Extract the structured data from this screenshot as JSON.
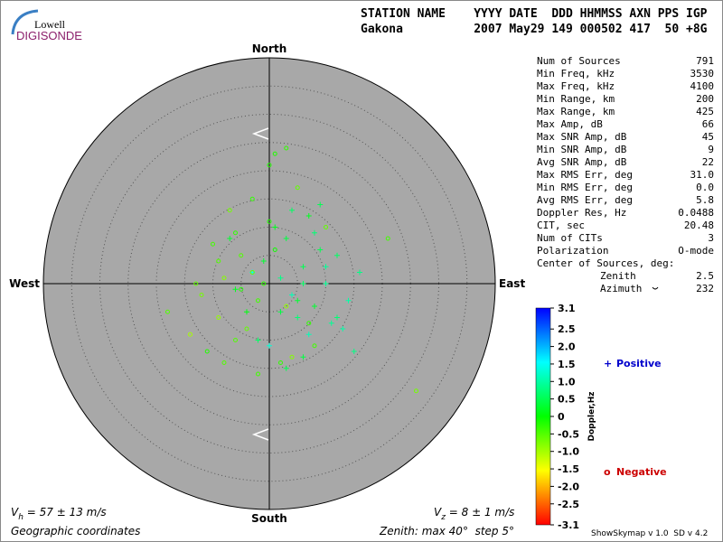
{
  "header": {
    "logo_top": "Lowell",
    "logo_bottom": "DIGISONDE",
    "columns_line": "STATION NAME    YYYY DATE  DDD HHMMSS AXN PPS IGP",
    "values_line": "Gakona          2007 May29 149 000502 417  50 +8G"
  },
  "stats": {
    "rows": [
      [
        "Num of Sources",
        "791"
      ],
      [
        "Min Freq, kHz",
        "3530"
      ],
      [
        "Max Freq, kHz",
        "4100"
      ],
      [
        "Min Range, km",
        "200"
      ],
      [
        "Max Range, km",
        "425"
      ],
      [
        "Max Amp, dB",
        "66"
      ],
      [
        "Max SNR Amp, dB",
        "45"
      ],
      [
        "Min SNR Amp, dB",
        "9"
      ],
      [
        "Avg SNR Amp, dB",
        "22"
      ],
      [
        "Max RMS Err, deg",
        "31.0"
      ],
      [
        "Min RMS Err, deg",
        "0.0"
      ],
      [
        "Avg RMS Err, deg",
        "5.8"
      ],
      [
        "Doppler Res, Hz",
        "0.0488"
      ],
      [
        "CIT, sec",
        "20.48"
      ],
      [
        "Num of CITs",
        "3"
      ],
      [
        "Polarization",
        "O-mode"
      ]
    ],
    "center_title": "Center of Sources, deg:",
    "center_rows": [
      [
        "Zenith",
        "2.5"
      ],
      [
        "Azimuth",
        "232"
      ]
    ]
  },
  "footer": {
    "vh_symbol": "V",
    "vh_sub": "h",
    "vh_text": " = 57 ± 13 m/s",
    "vz_symbol": "V",
    "vz_sub": "z",
    "vz_text": " = 8 ± 1 m/s",
    "coordinates": "Geographic coordinates",
    "zenith_note": "Zenith: max 40°  step 5°",
    "version": "ShowSkymap v 1.0  SD v 4.2"
  },
  "chart_data": {
    "type": "polar-scatter",
    "directions": {
      "north": "North",
      "south": "South",
      "west": "West",
      "east": "East"
    },
    "rlim": [
      0,
      40
    ],
    "rticks": [
      5,
      10,
      15,
      20,
      25,
      30,
      35
    ],
    "colormap": [
      "#ff0000",
      "#ffff00",
      "#00ff00",
      "#00ffff",
      "#0000ff"
    ],
    "colorbar": {
      "label": "Doppler,Hz",
      "lim": [
        -3.1,
        3.1
      ],
      "ticks": [
        3.1,
        2.5,
        {
          "value": 2,
          "label": "2.0"
        },
        1.5,
        {
          "value": 1,
          "label": "1.0"
        },
        0.5,
        0,
        -0.5,
        {
          "value": -1,
          "label": "-1.0"
        },
        -1.5,
        {
          "value": -2,
          "label": "-2.0"
        },
        -2.5,
        -3.1
      ]
    },
    "series": [
      {
        "name": "Positive",
        "marker": "+",
        "color": "#0000cc",
        "x": [
          2,
          4,
          6,
          8,
          10,
          -3,
          -6,
          12,
          14,
          3,
          5,
          7,
          -1,
          9,
          11,
          1,
          0,
          4,
          6,
          16,
          -4,
          8,
          13,
          3,
          5,
          -2,
          10,
          7,
          2,
          15,
          -7,
          6,
          4,
          9,
          12
        ],
        "y": [
          1,
          -2,
          3,
          -4,
          0,
          2,
          -1,
          5,
          -3,
          8,
          -6,
          -9,
          4,
          6,
          -7,
          10,
          -11,
          13,
          -13,
          2,
          -5,
          9,
          -8,
          -15,
          -3,
          -10,
          3,
          12,
          -5,
          -12,
          8,
          0,
          -2,
          14,
          -6
        ],
        "doppler": [
          0.8,
          1.2,
          0.5,
          0.3,
          0.9,
          1.5,
          0.2,
          0.6,
          1.0,
          0.4,
          0.7,
          1.1,
          0.3,
          0.5,
          0.9,
          0.2,
          1.3,
          0.6,
          0.4,
          0.8,
          0.1,
          0.7,
          1.0,
          0.5,
          0.3,
          0.6,
          0.9,
          0.2,
          0.4,
          0.8,
          0.3,
          0.6,
          1.1,
          0.5,
          0.7
        ]
      },
      {
        "name": "Negative",
        "marker": "o",
        "color": "#cc0000",
        "x": [
          -1,
          -3,
          -5,
          -8,
          -2,
          -9,
          -12,
          1,
          3,
          -6,
          -4,
          0,
          -14,
          -10,
          -18,
          2,
          -7,
          -11,
          5,
          -2,
          4,
          7,
          -6,
          0,
          10,
          21,
          26,
          -3,
          -9,
          1,
          -5,
          8,
          -13,
          3,
          -8
        ],
        "y": [
          0,
          2,
          -1,
          1,
          -3,
          4,
          -2,
          6,
          -4,
          9,
          -8,
          11,
          -9,
          7,
          -5,
          -14,
          13,
          -12,
          17,
          -16,
          -13,
          -7,
          -10,
          21,
          10,
          8,
          -19,
          15,
          -6,
          23,
          5,
          -11,
          0,
          24,
          -14
        ],
        "doppler": [
          -0.3,
          -0.6,
          -0.2,
          -0.8,
          -0.4,
          -0.5,
          -0.7,
          -0.1,
          -0.9,
          -0.3,
          -0.6,
          -0.2,
          -1.0,
          -0.4,
          -0.5,
          -0.3,
          -0.7,
          -0.2,
          -0.6,
          -0.4,
          -0.8,
          -0.3,
          -0.5,
          -0.2,
          -0.6,
          -0.4,
          -0.7,
          -0.3,
          -0.9,
          -0.2,
          -0.5,
          -0.4,
          -0.6,
          -0.3,
          -0.5
        ]
      }
    ]
  }
}
